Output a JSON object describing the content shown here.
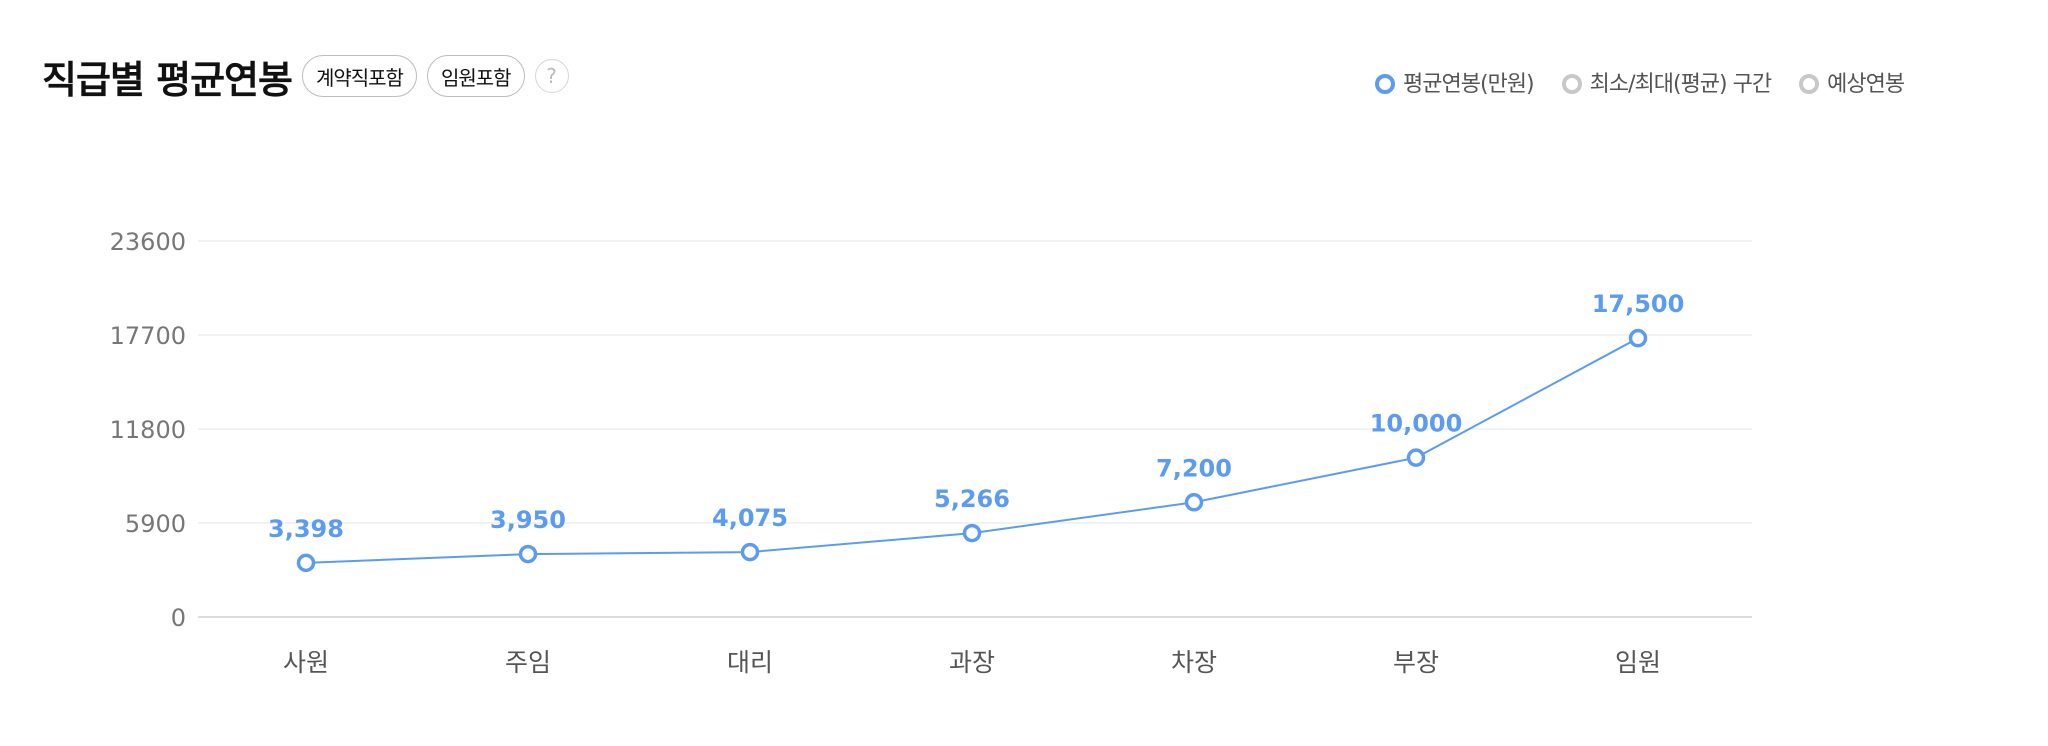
{
  "header": {
    "title": "직급별 평균연봉",
    "chips": [
      "계약직포함",
      "임원포함"
    ],
    "help_label": "?"
  },
  "legend": [
    {
      "label": "평균연봉(만원)",
      "active": true,
      "icon": "circle-dot-icon"
    },
    {
      "label": "최소/최대(평균) 구간",
      "active": false,
      "icon": "circle-dot-icon"
    },
    {
      "label": "예상연봉",
      "active": false,
      "icon": "circle-dot-icon"
    }
  ],
  "colors": {
    "line": "#5b9cf2",
    "grid": "#eeeeee",
    "axis_text": "#777777",
    "inactive": "#c8c8c8"
  },
  "chart_data": {
    "type": "line",
    "title": "",
    "xlabel": "",
    "ylabel": "",
    "categories": [
      "사원",
      "주임",
      "대리",
      "과장",
      "차장",
      "부장",
      "임원"
    ],
    "series": [
      {
        "name": "평균연봉(만원)",
        "values": [
          3398,
          3950,
          4075,
          5266,
          7200,
          10000,
          17500
        ]
      }
    ],
    "data_labels": [
      "3,398",
      "3,950",
      "4,075",
      "5,266",
      "7,200",
      "10,000",
      "17,500"
    ],
    "yticks": [
      0,
      5900,
      11800,
      17700,
      23600
    ],
    "ylim": [
      0,
      23600
    ],
    "grid": true
  }
}
